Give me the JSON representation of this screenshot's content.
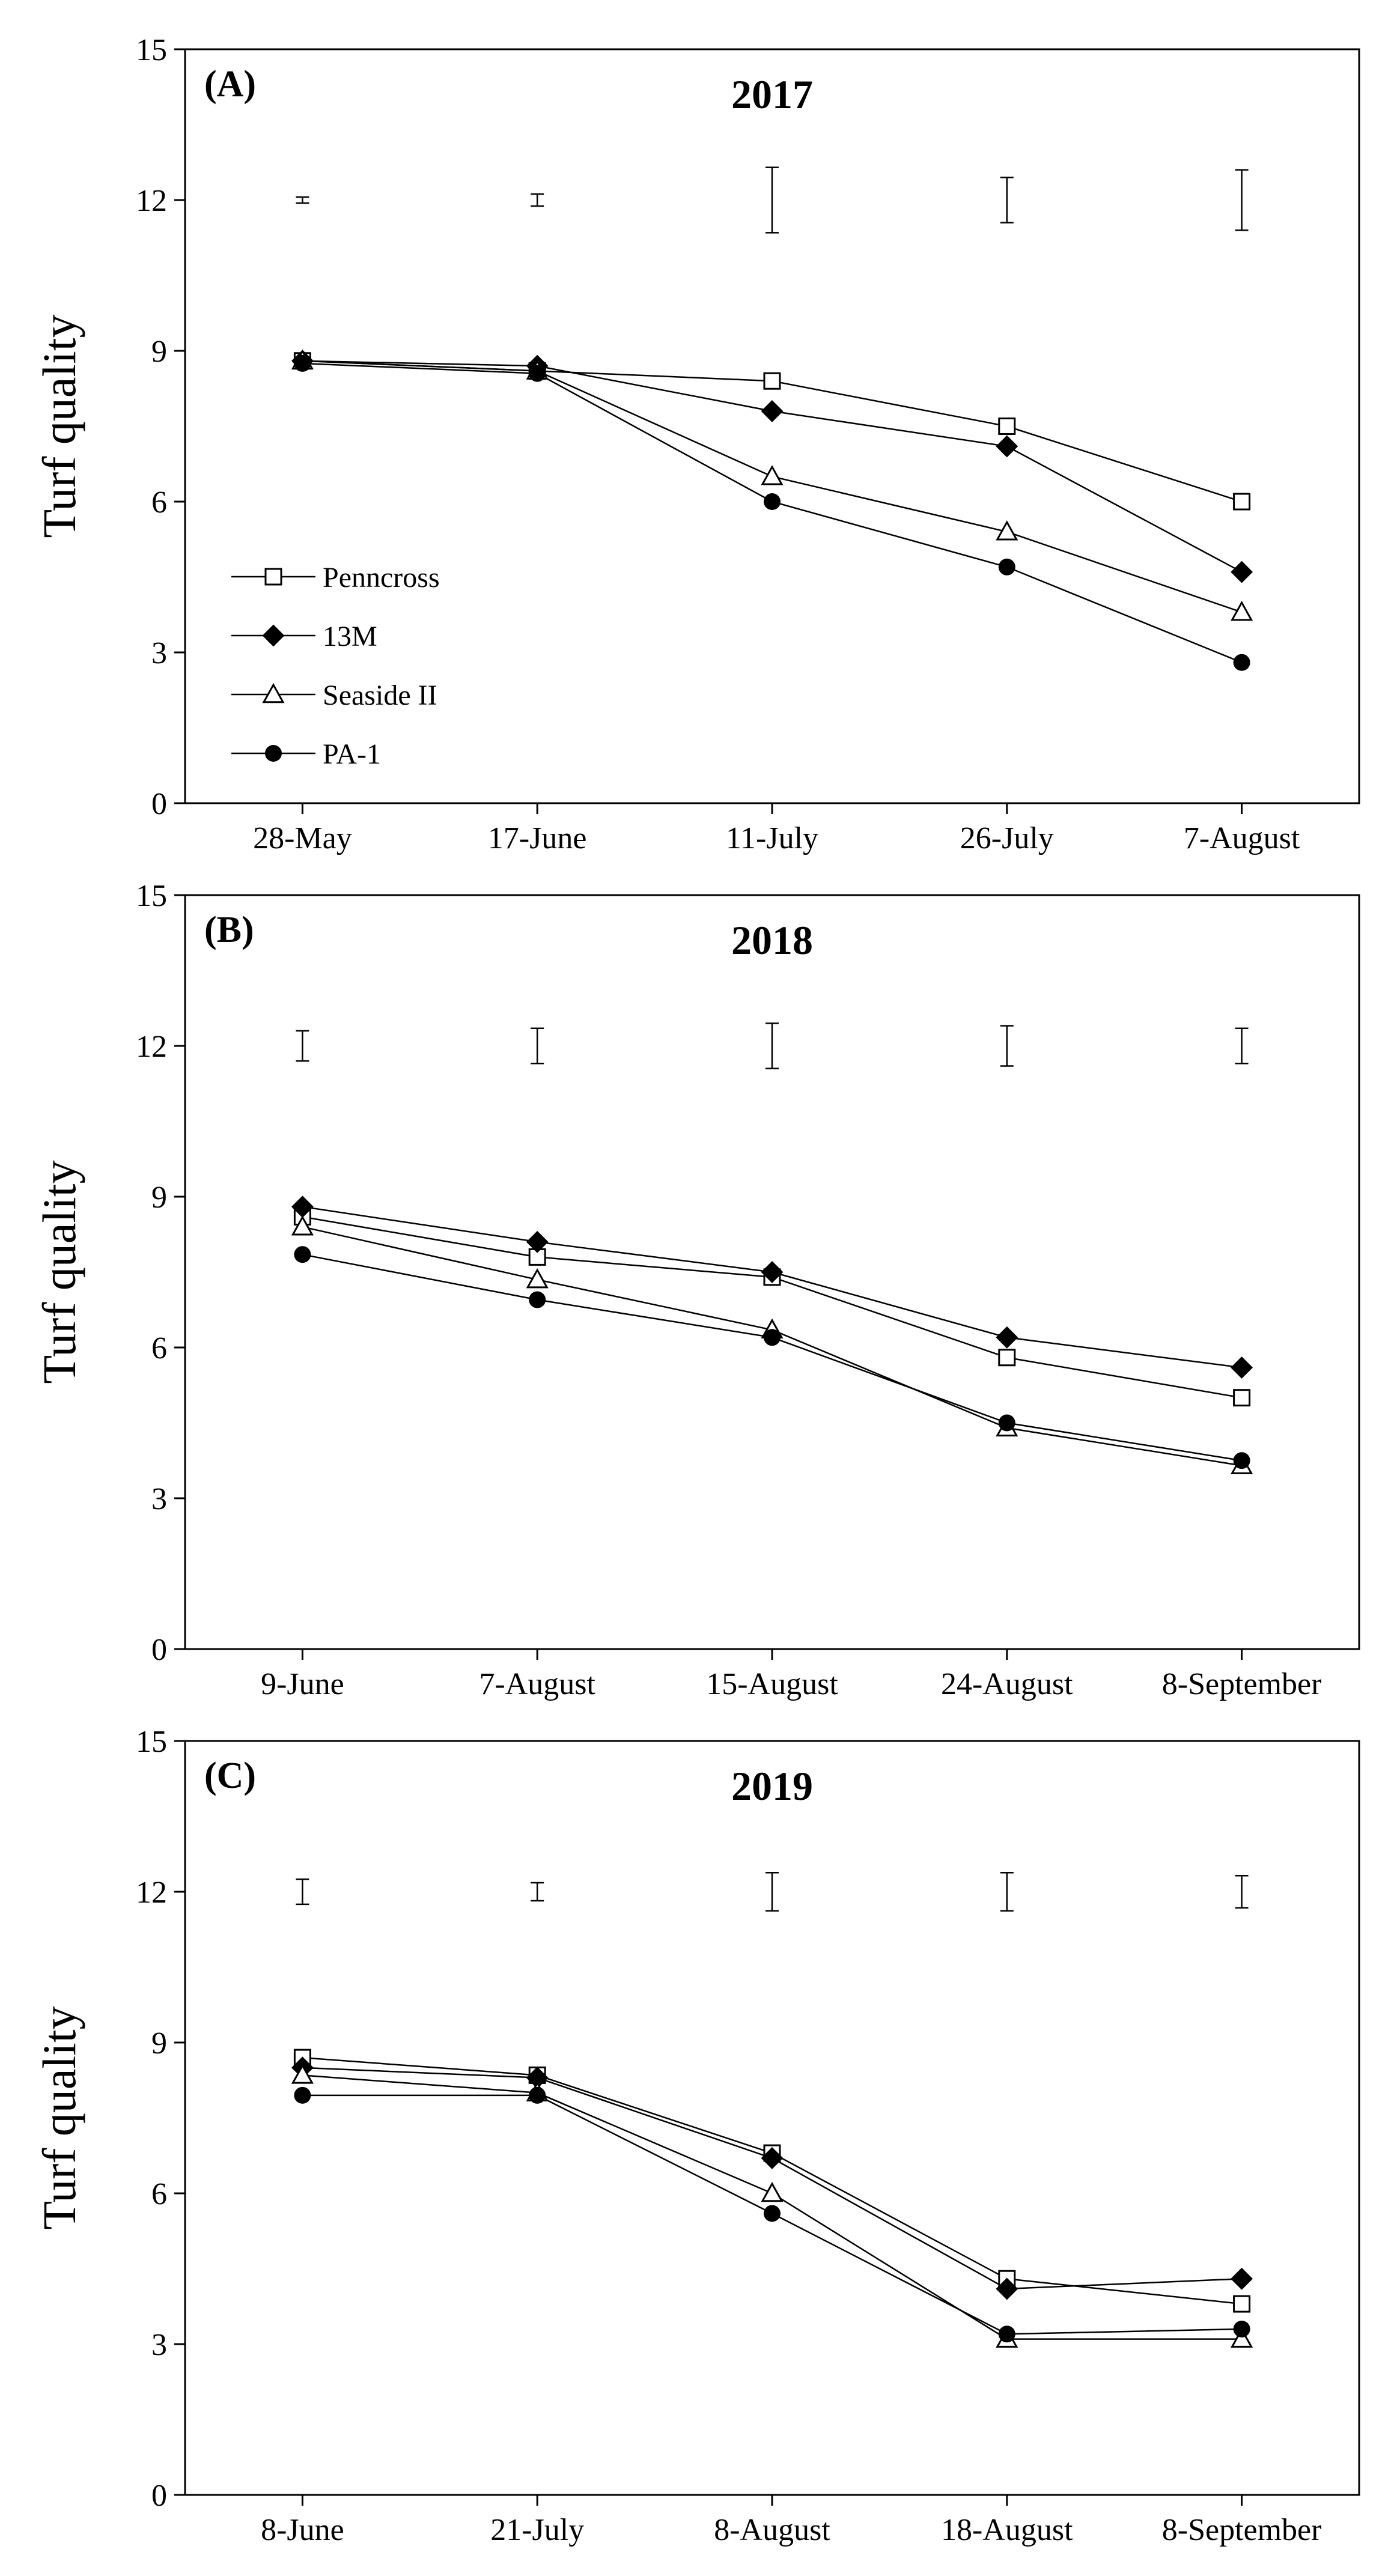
{
  "chart_data": [
    {
      "type": "line",
      "panel_label": "(A)",
      "title": "2017",
      "xlabel": "",
      "ylabel": "Turf quality",
      "ylim": [
        0,
        15
      ],
      "yticks": [
        "0",
        "3",
        "6",
        "9",
        "12",
        "15"
      ],
      "categories": [
        "28-May",
        "17-June",
        "11-July",
        "26-July",
        "7-August"
      ],
      "series": [
        {
          "name": "Penncross",
          "marker": "open-square",
          "values": [
            8.8,
            8.6,
            8.4,
            7.5,
            6.0
          ]
        },
        {
          "name": "13M",
          "marker": "filled-diamond",
          "values": [
            8.8,
            8.7,
            7.8,
            7.1,
            4.6
          ]
        },
        {
          "name": "Seaside II",
          "marker": "open-triangle",
          "values": [
            8.8,
            8.6,
            6.5,
            5.4,
            3.8
          ]
        },
        {
          "name": "PA-1",
          "marker": "filled-circle",
          "values": [
            8.75,
            8.55,
            6.0,
            4.7,
            2.8
          ]
        }
      ],
      "lsd_bars": [
        {
          "center": 12.0,
          "half": 0.06
        },
        {
          "center": 12.0,
          "half": 0.12
        },
        {
          "center": 12.0,
          "half": 0.65
        },
        {
          "center": 12.0,
          "half": 0.45
        },
        {
          "center": 12.0,
          "half": 0.6
        }
      ],
      "legend": [
        "Penncross",
        "13M",
        "Seaside II",
        "PA-1"
      ]
    },
    {
      "type": "line",
      "panel_label": "(B)",
      "title": "2018",
      "xlabel": "",
      "ylabel": "Turf quality",
      "ylim": [
        0,
        15
      ],
      "yticks": [
        "0",
        "3",
        "6",
        "9",
        "12",
        "15"
      ],
      "categories": [
        "9-June",
        "7-August",
        "15-August",
        "24-August",
        "8-September"
      ],
      "series": [
        {
          "name": "Penncross",
          "marker": "open-square",
          "values": [
            8.6,
            7.8,
            7.4,
            5.8,
            5.0
          ]
        },
        {
          "name": "13M",
          "marker": "filled-diamond",
          "values": [
            8.8,
            8.1,
            7.5,
            6.2,
            5.6
          ]
        },
        {
          "name": "Seaside II",
          "marker": "open-triangle",
          "values": [
            8.4,
            7.35,
            6.35,
            4.4,
            3.65
          ]
        },
        {
          "name": "PA-1",
          "marker": "filled-circle",
          "values": [
            7.85,
            6.95,
            6.2,
            4.5,
            3.75
          ]
        }
      ],
      "lsd_bars": [
        {
          "center": 12.0,
          "half": 0.3
        },
        {
          "center": 12.0,
          "half": 0.35
        },
        {
          "center": 12.0,
          "half": 0.45
        },
        {
          "center": 12.0,
          "half": 0.4
        },
        {
          "center": 12.0,
          "half": 0.35
        }
      ]
    },
    {
      "type": "line",
      "panel_label": "(C)",
      "title": "2019",
      "xlabel": "",
      "ylabel": "Turf quality",
      "ylim": [
        0,
        15
      ],
      "yticks": [
        "0",
        "3",
        "6",
        "9",
        "12",
        "15"
      ],
      "categories": [
        "8-June",
        "21-July",
        "8-August",
        "18-August",
        "8-September"
      ],
      "series": [
        {
          "name": "Penncross",
          "marker": "open-square",
          "values": [
            8.7,
            8.35,
            6.8,
            4.3,
            3.8
          ]
        },
        {
          "name": "13M",
          "marker": "filled-diamond",
          "values": [
            8.5,
            8.3,
            6.7,
            4.1,
            4.3
          ]
        },
        {
          "name": "Seaside II",
          "marker": "open-triangle",
          "values": [
            8.35,
            8.0,
            6.0,
            3.1,
            3.1
          ]
        },
        {
          "name": "PA-1",
          "marker": "filled-circle",
          "values": [
            7.95,
            7.95,
            5.6,
            3.2,
            3.3
          ]
        }
      ],
      "lsd_bars": [
        {
          "center": 12.0,
          "half": 0.25
        },
        {
          "center": 12.0,
          "half": 0.18
        },
        {
          "center": 12.0,
          "half": 0.38
        },
        {
          "center": 12.0,
          "half": 0.38
        },
        {
          "center": 12.0,
          "half": 0.32
        }
      ]
    }
  ]
}
